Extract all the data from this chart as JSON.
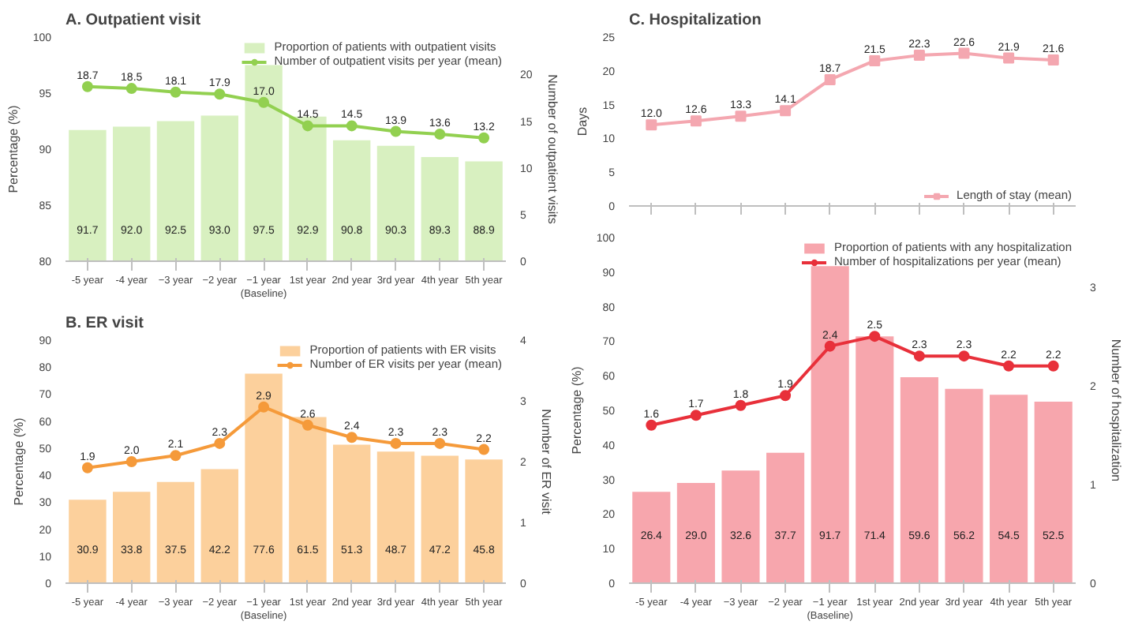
{
  "chart_data": [
    {
      "type": "bar",
      "title": "A. Outpatient visit",
      "categories": [
        "-5 year",
        "-4 year",
        "−3 year",
        "−2 year",
        "−1 year\n(Baseline)",
        "1st year",
        "2nd year",
        "3rd year",
        "4th year",
        "5th year"
      ],
      "ylabel": "Percentage (%)",
      "y2label": "Number of outpatient visits",
      "ylim": [
        80,
        100
      ],
      "yticks": [
        80,
        85,
        90,
        95,
        100
      ],
      "y2lim": [
        0,
        24
      ],
      "y2ticks": [
        0,
        5,
        10,
        15,
        20
      ],
      "legend": "top right",
      "series": [
        {
          "name": "Proportion of patients with outpatient visits",
          "color": "#d8f0c0",
          "values": [
            91.7,
            92.0,
            92.5,
            93.0,
            97.5,
            92.9,
            90.8,
            90.3,
            89.3,
            88.9
          ],
          "value_labels": [
            "91.7",
            "92.0",
            "92.5",
            "93.0",
            "97.5",
            "92.9",
            "90.8",
            "90.3",
            "89.3",
            "88.9"
          ]
        },
        {
          "name": "Number of outpatient visits per year (mean)",
          "type": "line",
          "axis": "y2",
          "marker": "circle",
          "color": "#92d050",
          "values": [
            18.7,
            18.5,
            18.1,
            17.9,
            17.0,
            14.5,
            14.5,
            13.9,
            13.6,
            13.2
          ],
          "value_labels": [
            "18.7",
            "18.5",
            "18.1",
            "17.9",
            "17.0",
            "14.5",
            "14.5",
            "13.9",
            "13.6",
            "13.2"
          ]
        }
      ]
    },
    {
      "type": "bar",
      "title": "B. ER visit",
      "categories": [
        "-5 year",
        "-4 year",
        "−3 year",
        "−2 year",
        "−1 year\n(Baseline)",
        "1st year",
        "2nd year",
        "3rd year",
        "4th year",
        "5th year"
      ],
      "ylabel": "Percentage (%)",
      "y2label": "Number of ER visit",
      "ylim": [
        0,
        90
      ],
      "yticks": [
        0,
        10,
        20,
        30,
        40,
        50,
        60,
        70,
        80,
        90
      ],
      "y2lim": [
        0,
        4
      ],
      "y2ticks": [
        0,
        1,
        2,
        3,
        4
      ],
      "legend": "top right",
      "series": [
        {
          "name": "Proportion of patients with ER visits",
          "color": "#fcd09c",
          "values": [
            30.9,
            33.8,
            37.5,
            42.2,
            77.6,
            61.5,
            51.3,
            48.7,
            47.2,
            45.8
          ],
          "value_labels": [
            "30.9",
            "33.8",
            "37.5",
            "42.2",
            "77.6",
            "61.5",
            "51.3",
            "48.7",
            "47.2",
            "45.8"
          ]
        },
        {
          "name": "Number of ER visits per year (mean)",
          "type": "line",
          "axis": "y2",
          "marker": "circle",
          "color": "#f59a3a",
          "values": [
            1.9,
            2.0,
            2.1,
            2.3,
            2.9,
            2.6,
            2.4,
            2.3,
            2.3,
            2.2
          ],
          "value_labels": [
            "1.9",
            "2.0",
            "2.1",
            "2.3",
            "2.9",
            "2.6",
            "2.4",
            "2.3",
            "2.3",
            "2.2"
          ]
        }
      ]
    },
    {
      "type": "line",
      "title": "C. Hospitalization",
      "categories": [
        null,
        null,
        null,
        null,
        null,
        null,
        null,
        null,
        null,
        null
      ],
      "ylabel": "Days",
      "ylim": [
        0,
        25
      ],
      "yticks": [
        0,
        5,
        10,
        15,
        20,
        25
      ],
      "legend": "bottom right",
      "series": [
        {
          "name": "Length of stay (mean)",
          "marker": "square",
          "color": "#f4a7b0",
          "values": [
            12.0,
            12.6,
            13.3,
            14.1,
            18.7,
            21.5,
            22.3,
            22.6,
            21.9,
            21.6
          ],
          "value_labels": [
            "12.0",
            "12.6",
            "13.3",
            "14.1",
            "18.7",
            "21.5",
            "22.3",
            "22.6",
            "21.9",
            "21.6"
          ]
        }
      ]
    },
    {
      "type": "bar",
      "categories": [
        "-5 year",
        "-4 year",
        "−3 year",
        "−2 year",
        "−1 year\n(Baseline)",
        "1st year",
        "2nd year",
        "3rd year",
        "4th year",
        "5th year"
      ],
      "ylabel": "Percentage (%)",
      "y2label": "Number of hospitalization",
      "ylim": [
        0,
        100
      ],
      "yticks": [
        0,
        10,
        20,
        30,
        40,
        50,
        60,
        70,
        80,
        90,
        100
      ],
      "y2lim": [
        0,
        3.5
      ],
      "y2ticks": [
        0,
        1,
        2,
        3
      ],
      "legend": "top right",
      "series": [
        {
          "name": "Proportion of patients with any hospitalization",
          "color": "#f7a6ad",
          "values": [
            26.4,
            29.0,
            32.6,
            37.7,
            91.7,
            71.4,
            59.6,
            56.2,
            54.5,
            52.5
          ],
          "value_labels": [
            "26.4",
            "29.0",
            "32.6",
            "37.7",
            "91.7",
            "71.4",
            "59.6",
            "56.2",
            "54.5",
            "52.5"
          ]
        },
        {
          "name": "Number of hospitalizations per year (mean)",
          "type": "line",
          "axis": "y2",
          "marker": "circle",
          "color": "#e8303a",
          "values": [
            1.6,
            1.7,
            1.8,
            1.9,
            2.4,
            2.5,
            2.3,
            2.3,
            2.2,
            2.2
          ],
          "value_labels": [
            "1.6",
            "1.7",
            "1.8",
            "1.9",
            "2.4",
            "2.5",
            "2.3",
            "2.3",
            "2.2",
            "2.2"
          ]
        }
      ]
    }
  ]
}
